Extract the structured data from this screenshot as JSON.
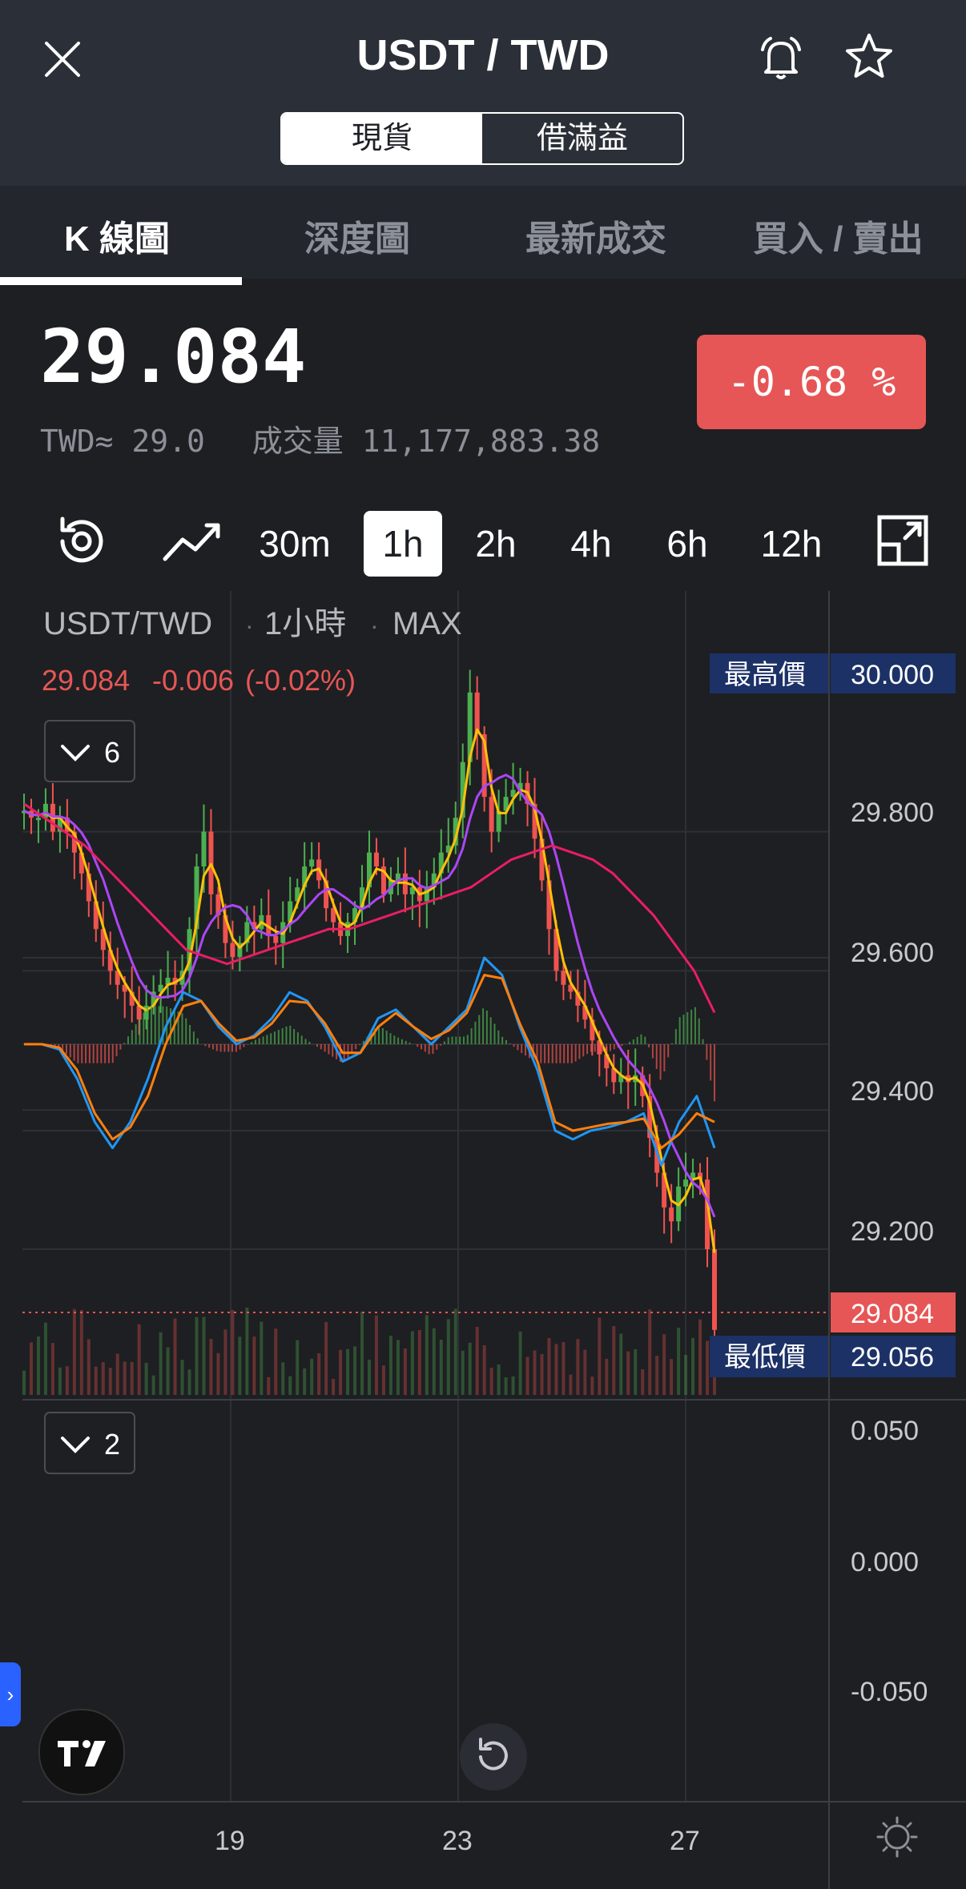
{
  "header": {
    "title": "USDT / TWD",
    "segments": [
      "現貨",
      "借滿益"
    ]
  },
  "tabs": [
    "K 線圖",
    "深度圖",
    "最新成交",
    "買入 / 賣出"
  ],
  "ticker": {
    "price": "29.084",
    "twd_approx": "TWD≈ 29.0",
    "volume_label": "成交量",
    "volume": "11,177,883.38",
    "change": "-0.68 %"
  },
  "timeframes": [
    "30m",
    "1h",
    "2h",
    "4h",
    "6h",
    "12h"
  ],
  "selected_timeframe": "1h",
  "chart": {
    "legend": {
      "symbol": "USDT/TWD",
      "interval": "1小時",
      "range": "MAX",
      "sep": "·"
    },
    "quote": {
      "last": "29.084",
      "change": "-0.006",
      "change_pct": "(-0.02%)"
    },
    "main_indicator_count": "6",
    "osc_indicator_count": "2",
    "high_label": "最高價",
    "high_value": "30.000",
    "low_label": "最低價",
    "low_value": "29.056",
    "current_price_tag": "29.084",
    "y_labels": [
      "29.800",
      "29.600",
      "29.400",
      "29.200"
    ],
    "osc_labels": [
      "0.050",
      "0.000",
      "-0.050"
    ],
    "x_labels": [
      "19",
      "23",
      "27"
    ]
  },
  "colors": {
    "up": "#4caf50",
    "down": "#ef5350",
    "ma_fast": "#ffc107",
    "ma_mid": "#ab47f5",
    "ma_slow": "#e91e63",
    "macd": "#2196f3",
    "signal": "#ff7f0e",
    "change_bg": "#e65656",
    "tag_blue": "#1c3166"
  },
  "chart_data": {
    "type": "candlestick",
    "price_close": [
      29.83,
      29.82,
      29.82,
      29.84,
      29.8,
      29.82,
      29.8,
      29.77,
      29.74,
      29.7,
      29.66,
      29.63,
      29.6,
      29.58,
      29.57,
      29.55,
      29.53,
      29.55,
      29.57,
      29.58,
      29.59,
      29.58,
      29.6,
      29.66,
      29.75,
      29.8,
      29.71,
      29.68,
      29.64,
      29.62,
      29.64,
      29.67,
      29.66,
      29.68,
      29.65,
      29.64,
      29.67,
      29.7,
      29.72,
      29.75,
      29.76,
      29.73,
      29.69,
      29.67,
      29.65,
      29.67,
      29.69,
      29.72,
      29.77,
      29.75,
      29.71,
      29.73,
      29.74,
      29.71,
      29.72,
      29.7,
      29.72,
      29.74,
      29.77,
      29.78,
      29.82,
      29.9,
      30.0,
      29.94,
      29.85,
      29.8,
      29.83,
      29.85,
      29.86,
      29.87,
      29.84,
      29.79,
      29.73,
      29.66,
      29.6,
      29.58,
      29.57,
      29.55,
      29.53,
      29.5,
      29.48,
      29.46,
      29.44,
      29.45,
      29.44,
      29.45,
      29.42,
      29.36,
      29.31,
      29.26,
      29.24,
      29.29,
      29.3,
      29.31,
      29.3,
      29.2,
      29.084
    ],
    "ma_slow": [
      29.84,
      29.82,
      29.8,
      29.78,
      29.75,
      29.72,
      29.69,
      29.66,
      29.63,
      29.62,
      29.61,
      29.62,
      29.63,
      29.64,
      29.65,
      29.66,
      29.66,
      29.67,
      29.68,
      29.69,
      29.7,
      29.71,
      29.72,
      29.74,
      29.76,
      29.77,
      29.78,
      29.77,
      29.76,
      29.74,
      29.71,
      29.68,
      29.64,
      29.6,
      29.54
    ],
    "osc_macd": [
      0.0,
      0.0,
      -0.003,
      -0.02,
      -0.045,
      -0.06,
      -0.045,
      -0.02,
      0.01,
      0.03,
      0.025,
      0.01,
      0.0,
      0.005,
      0.015,
      0.03,
      0.025,
      0.01,
      -0.01,
      -0.005,
      0.015,
      0.02,
      0.01,
      0.0,
      0.01,
      0.02,
      0.05,
      0.04,
      0.01,
      -0.015,
      -0.05,
      -0.055,
      -0.05,
      -0.048,
      -0.045,
      -0.04,
      -0.07,
      -0.045,
      -0.03,
      -0.06
    ],
    "osc_signal": [
      0.0,
      0.0,
      -0.002,
      -0.015,
      -0.04,
      -0.055,
      -0.048,
      -0.03,
      0.0,
      0.022,
      0.025,
      0.012,
      0.002,
      0.004,
      0.012,
      0.025,
      0.024,
      0.012,
      -0.005,
      -0.005,
      0.01,
      0.018,
      0.01,
      0.003,
      0.008,
      0.018,
      0.04,
      0.038,
      0.012,
      -0.01,
      -0.045,
      -0.05,
      -0.048,
      -0.046,
      -0.045,
      -0.043,
      -0.06,
      -0.052,
      -0.04,
      -0.045
    ]
  }
}
